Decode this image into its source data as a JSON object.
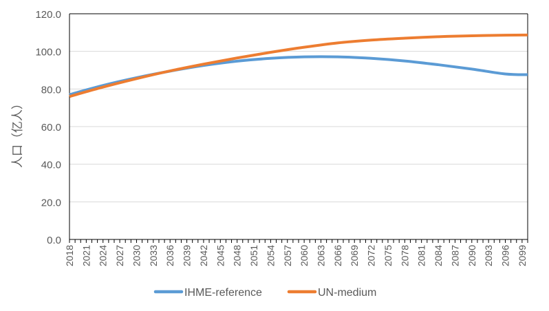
{
  "chart_data": {
    "type": "line",
    "title": "",
    "xlabel": "",
    "ylabel": "人口（亿人）",
    "ylim": [
      0,
      120
    ],
    "yticks": [
      "0.0",
      "20.0",
      "40.0",
      "60.0",
      "80.0",
      "100.0",
      "120.0"
    ],
    "xlim": [
      2018,
      2100
    ],
    "xticks": [
      "2018",
      "2021",
      "2024",
      "2027",
      "2030",
      "2033",
      "2036",
      "2039",
      "2042",
      "2045",
      "2048",
      "2051",
      "2054",
      "2057",
      "2060",
      "2063",
      "2066",
      "2069",
      "2072",
      "2075",
      "2078",
      "2081",
      "2084",
      "2087",
      "2090",
      "2093",
      "2096",
      "2099"
    ],
    "grid": "horizontal",
    "legend_position": "bottom",
    "series": [
      {
        "name": "IHME-reference",
        "color": "#5B9BD5",
        "x": [
          2018,
          2024,
          2030,
          2036,
          2042,
          2048,
          2054,
          2060,
          2066,
          2072,
          2078,
          2084,
          2090,
          2096,
          2100
        ],
        "values": [
          77.0,
          81.9,
          86.0,
          89.5,
          92.5,
          94.8,
          96.3,
          97.1,
          97.1,
          96.3,
          94.9,
          92.9,
          90.6,
          88.0,
          87.6
        ]
      },
      {
        "name": "UN-medium",
        "color": "#ED7D31",
        "x": [
          2018,
          2024,
          2030,
          2036,
          2042,
          2048,
          2054,
          2060,
          2066,
          2072,
          2078,
          2084,
          2090,
          2096,
          2100
        ],
        "values": [
          76.0,
          81.0,
          85.5,
          89.6,
          93.2,
          96.5,
          99.5,
          102.2,
          104.5,
          106.0,
          107.0,
          107.8,
          108.3,
          108.6,
          108.7
        ]
      }
    ]
  }
}
